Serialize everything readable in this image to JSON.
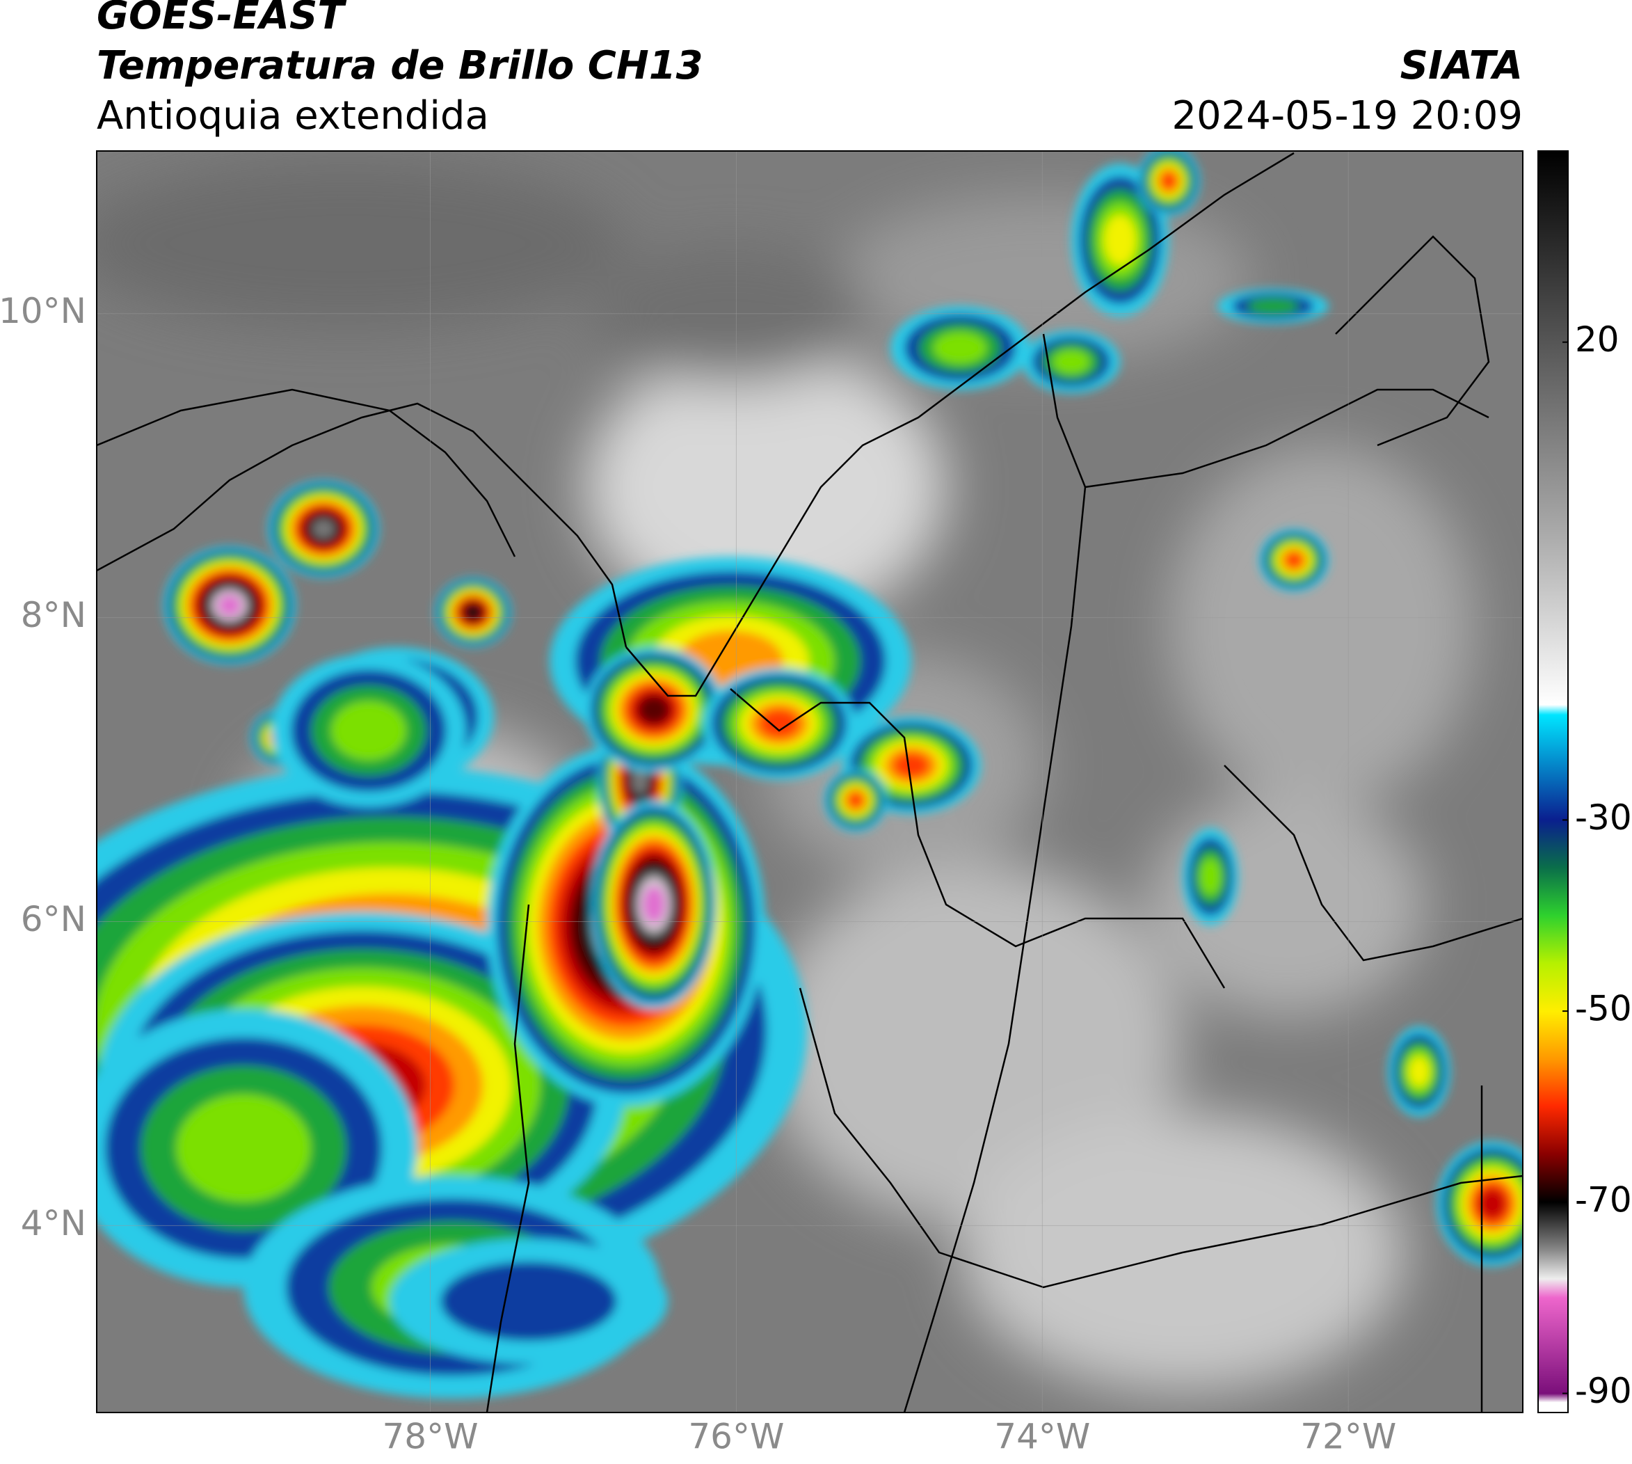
{
  "header": {
    "title": "GOES-EAST",
    "subtitle": "Temperatura de Brillo CH13",
    "region": "Antioquia extendida",
    "source": "SIATA",
    "datetime": "2024-05-19 20:09"
  },
  "map": {
    "xlim": [
      -80.18,
      -70.86
    ],
    "ylim": [
      2.77,
      11.07
    ],
    "xticks": [
      {
        "value": -78,
        "label": "78°W"
      },
      {
        "value": -76,
        "label": "76°W"
      },
      {
        "value": -74,
        "label": "74°W"
      },
      {
        "value": -72,
        "label": "72°W"
      }
    ],
    "yticks": [
      {
        "value": 4,
        "label": "4°N"
      },
      {
        "value": 6,
        "label": "6°N"
      },
      {
        "value": 8,
        "label": "8°N"
      },
      {
        "value": 10,
        "label": "10°N"
      }
    ],
    "grid": true
  },
  "colorbar": {
    "lim": [
      -92,
      40
    ],
    "ticks": [
      20,
      -30,
      -50,
      -70,
      -90
    ]
  }
}
